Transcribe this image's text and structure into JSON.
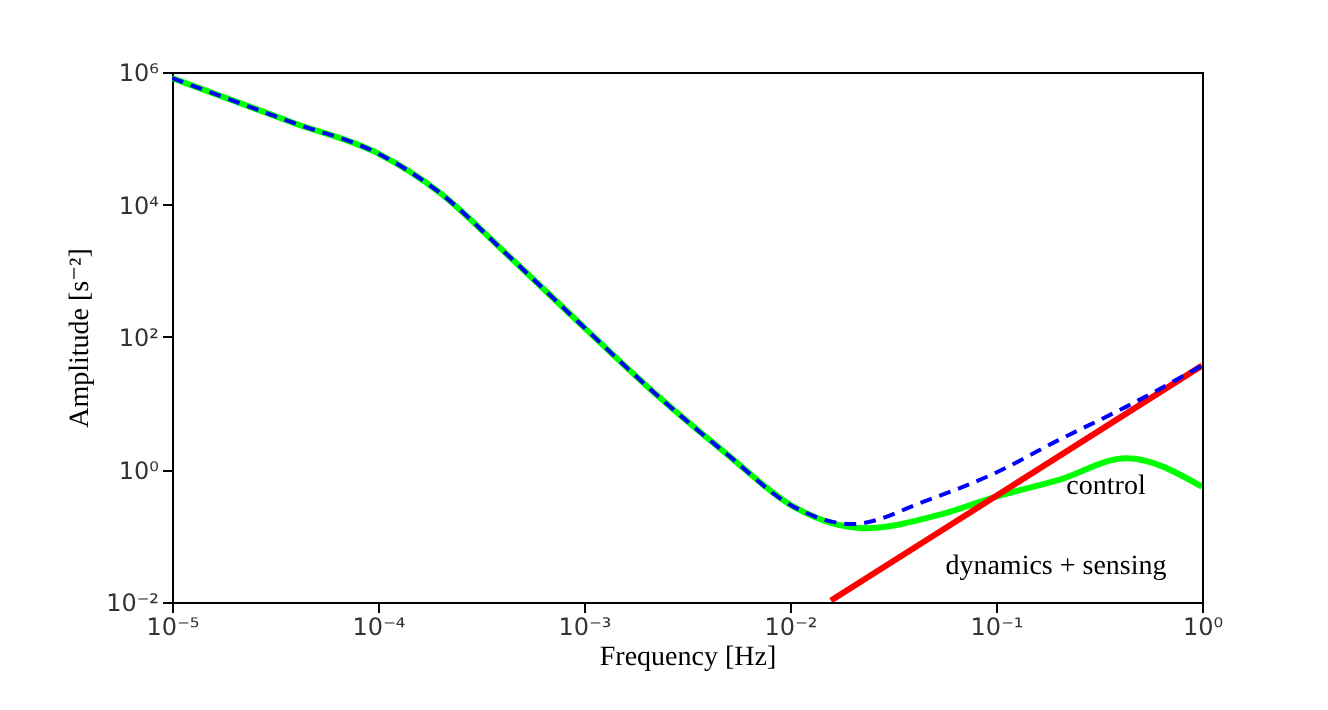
{
  "chart_data": {
    "type": "line",
    "xlabel": "Frequency [Hz]",
    "ylabel": "Amplitude [s⁻²]",
    "log": "xy",
    "grid": false,
    "xlim": [
      1e-05,
      1
    ],
    "ylim": [
      0.01,
      1000000
    ],
    "xticks": [
      {
        "value": 1e-05,
        "label": "10⁻⁵"
      },
      {
        "value": 0.0001,
        "label": "10⁻⁴"
      },
      {
        "value": 0.001,
        "label": "10⁻³"
      },
      {
        "value": 0.01,
        "label": "10⁻²"
      },
      {
        "value": 0.1,
        "label": "10⁻¹"
      },
      {
        "value": 1,
        "label": "10⁰"
      }
    ],
    "yticks": [
      {
        "value": 0.01,
        "label": "10⁻²"
      },
      {
        "value": 1,
        "label": "10⁰"
      },
      {
        "value": 100,
        "label": "10²"
      },
      {
        "value": 10000,
        "label": "10⁴"
      },
      {
        "value": 1000000,
        "label": "10⁶"
      }
    ],
    "series": [
      {
        "color": "#0000ff",
        "line_style": "dashed",
        "x": [
          1e-05,
          3.9e-05,
          0.0001,
          0.0002,
          0.00042,
          0.001,
          0.0023,
          0.0049,
          0.0105,
          0.02,
          0.046,
          0.098,
          0.2,
          0.43,
          1
        ],
        "values": [
          810000,
          170000,
          59000,
          15000,
          1800,
          140,
          12.6,
          1.74,
          0.27,
          0.15,
          0.34,
          0.87,
          2.75,
          8.9,
          37
        ]
      },
      {
        "color": "#00ff00",
        "line_style": "solid",
        "x": [
          1e-05,
          3.9e-05,
          0.0001,
          0.0002,
          0.00042,
          0.001,
          0.0023,
          0.0049,
          0.0105,
          0.023,
          0.054,
          0.1,
          0.2,
          0.43,
          1
        ],
        "values": [
          810000,
          170000,
          59000,
          15000,
          1800,
          140,
          12.6,
          1.74,
          0.27,
          0.13,
          0.21,
          0.39,
          0.69,
          1.48,
          0.55
        ]
      },
      {
        "color": "#ff0000",
        "line_style": "solid",
        "x": [
          0.0158,
          1
        ],
        "values": [
          0.0105,
          37
        ]
      }
    ],
    "annotations": [
      "control",
      "dynamics + sensing"
    ]
  }
}
